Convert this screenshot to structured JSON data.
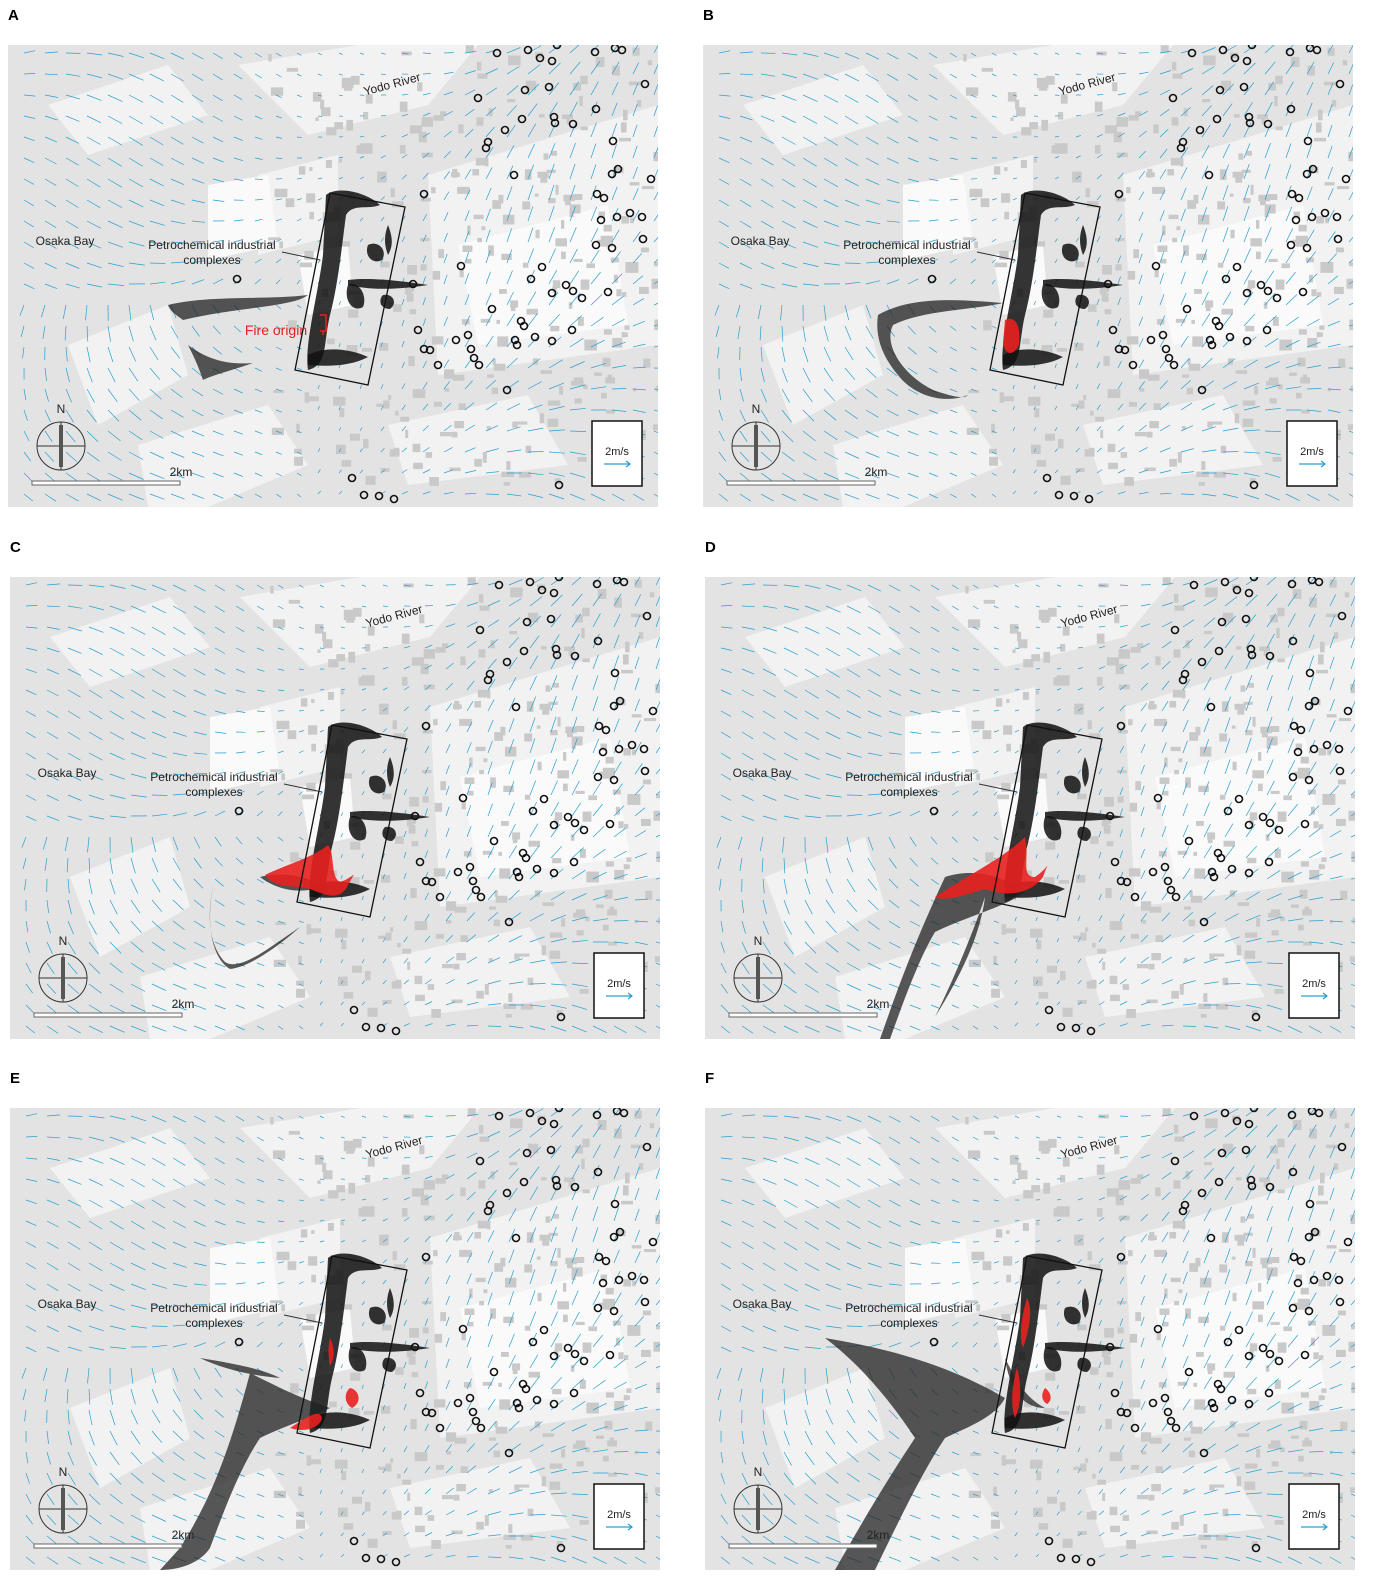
{
  "panels": [
    {
      "label": "A",
      "yodo_river": "Yodo River",
      "osaka_bay": "Osaka Bay",
      "complex_label": [
        "Petrochemical industrial",
        "complexes"
      ],
      "north": "N",
      "scale": "2km",
      "wind_scale": "2m/s",
      "fire_origin": "Fire origin"
    },
    {
      "label": "B",
      "yodo_river": "Yodo River",
      "osaka_bay": "Osaka Bay",
      "complex_label": [
        "Petrochemical industrial",
        "complexes"
      ],
      "north": "N",
      "scale": "2km",
      "wind_scale": "2m/s"
    },
    {
      "label": "C",
      "yodo_river": "Yodo River",
      "osaka_bay": "Osaka Bay",
      "complex_label": [
        "Petrochemical industrial",
        "complexes"
      ],
      "north": "N",
      "scale": "2km",
      "wind_scale": "2m/s"
    },
    {
      "label": "D",
      "yodo_river": "Yodo River",
      "osaka_bay": "Osaka Bay",
      "complex_label": [
        "Petrochemical industrial",
        "complexes"
      ],
      "north": "N",
      "scale": "2km",
      "wind_scale": "2m/s"
    },
    {
      "label": "E",
      "yodo_river": "Yodo River",
      "osaka_bay": "Osaka Bay",
      "complex_label": [
        "Petrochemical industrial",
        "complexes"
      ],
      "north": "N",
      "scale": "2km",
      "wind_scale": "2m/s"
    },
    {
      "label": "F",
      "yodo_river": "Yodo River",
      "osaka_bay": "Osaka Bay",
      "complex_label": [
        "Petrochemical industrial",
        "complexes"
      ],
      "north": "N",
      "scale": "2km",
      "wind_scale": "2m/s"
    }
  ]
}
